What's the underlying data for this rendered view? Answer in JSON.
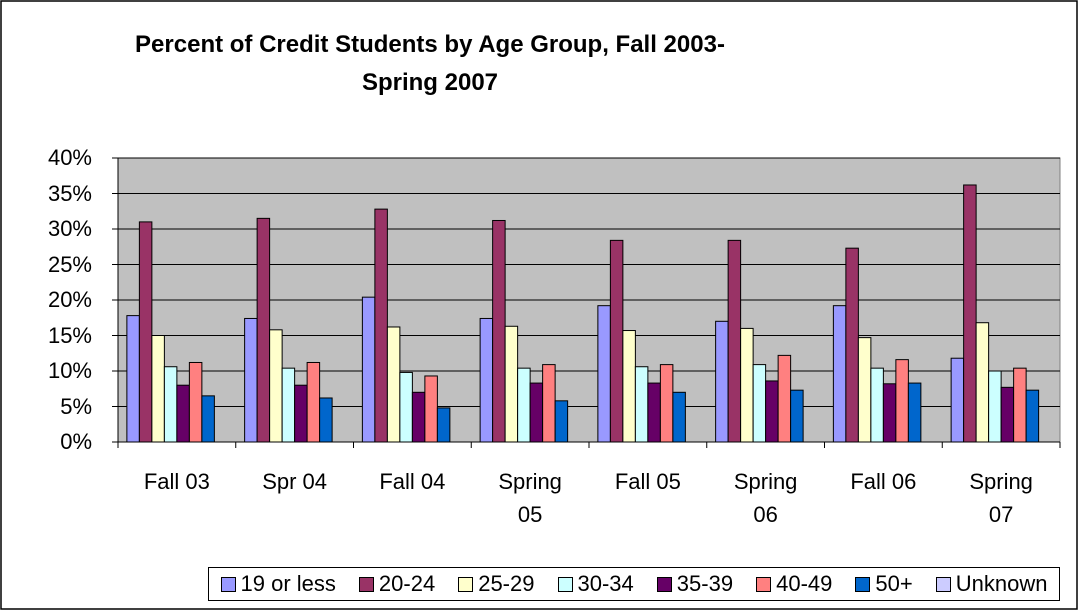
{
  "chart_data": {
    "type": "bar",
    "title": "Percent of Credit Students by Age Group, Fall 2003-Spring 2007",
    "categories": [
      "Fall 03",
      "Spr 04",
      "Fall 04",
      "Spring 05",
      "Fall 05",
      "Spring 06",
      "Fall 06",
      "Spring 07"
    ],
    "series": [
      {
        "name": "19 or less",
        "color": "#9999ff",
        "values": [
          17.8,
          17.4,
          20.4,
          17.4,
          19.2,
          17.0,
          19.2,
          11.8
        ]
      },
      {
        "name": "20-24",
        "color": "#993366",
        "values": [
          31.0,
          31.5,
          32.8,
          31.2,
          28.4,
          28.4,
          27.3,
          36.2
        ]
      },
      {
        "name": "25-29",
        "color": "#ffffcc",
        "values": [
          15.0,
          15.8,
          16.2,
          16.3,
          15.7,
          16.0,
          14.7,
          16.8
        ]
      },
      {
        "name": "30-34",
        "color": "#ccffff",
        "values": [
          10.6,
          10.4,
          9.8,
          10.4,
          10.6,
          10.9,
          10.4,
          10.0
        ]
      },
      {
        "name": "35-39",
        "color": "#660066",
        "values": [
          8.0,
          8.0,
          7.0,
          8.3,
          8.3,
          8.6,
          8.2,
          7.7
        ]
      },
      {
        "name": "40-49",
        "color": "#ff8080",
        "values": [
          11.2,
          11.2,
          9.3,
          10.9,
          10.9,
          12.2,
          11.6,
          10.4
        ]
      },
      {
        "name": "50+",
        "color": "#0066cc",
        "values": [
          6.5,
          6.2,
          4.8,
          5.8,
          7.0,
          7.3,
          8.3,
          7.3
        ]
      },
      {
        "name": "Unknown",
        "color": "#ccccff",
        "values": [
          0,
          0,
          0,
          0,
          0,
          0,
          0,
          0
        ]
      }
    ],
    "ylim": [
      0,
      40
    ],
    "yticks": [
      {
        "value": 0,
        "label": "0%"
      },
      {
        "value": 5,
        "label": "5%"
      },
      {
        "value": 10,
        "label": "10%"
      },
      {
        "value": 15,
        "label": "15%"
      },
      {
        "value": 20,
        "label": "20%"
      },
      {
        "value": 25,
        "label": "25%"
      },
      {
        "value": 30,
        "label": "30%"
      },
      {
        "value": 35,
        "label": "35%"
      },
      {
        "value": 40,
        "label": "40%"
      }
    ],
    "grid": true,
    "legend": "bottom",
    "plot_background": "#c0c0c0"
  }
}
